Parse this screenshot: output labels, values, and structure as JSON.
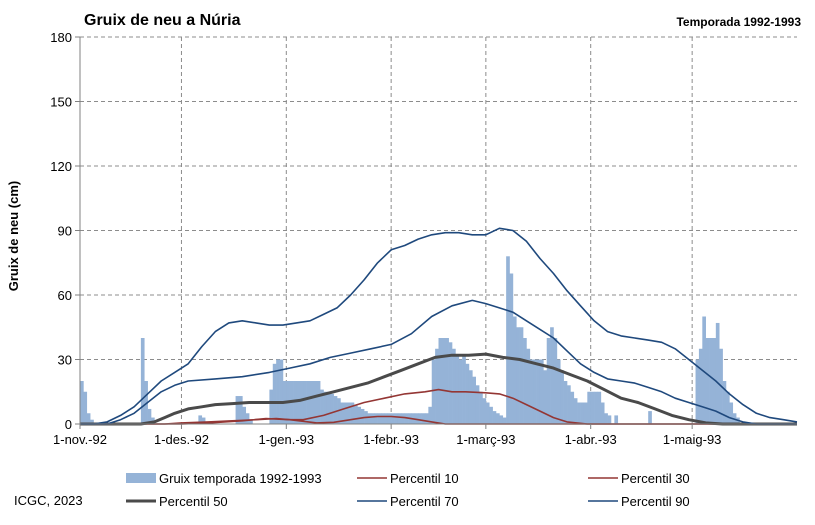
{
  "chart_data": {
    "type": "bar",
    "title": "Gruix de neu a Núria",
    "subtitle": "Temporada 1992-1993",
    "ylabel": "Gruix de neu (cm)",
    "xlabel": "",
    "ylim": [
      0,
      180
    ],
    "yticks": [
      0,
      30,
      60,
      90,
      120,
      150,
      180
    ],
    "x_start": "1992-11-01",
    "x_end": "1993-05-31",
    "xticks": [
      {
        "date": "1992-11-01",
        "label": "1-nov.-92"
      },
      {
        "date": "1992-12-01",
        "label": "1-des.-92"
      },
      {
        "date": "1993-01-01",
        "label": "1-gen.-93"
      },
      {
        "date": "1993-02-01",
        "label": "1-febr.-93"
      },
      {
        "date": "1993-03-01",
        "label": "1-març-93"
      },
      {
        "date": "1993-04-01",
        "label": "1-abr.-93"
      },
      {
        "date": "1993-05-01",
        "label": "1-maig-93"
      }
    ],
    "grid": true,
    "legend_position": "bottom",
    "bars": {
      "name": "Gruix temporada 1992-1993",
      "color": "#95B3D7",
      "values": [
        20,
        15,
        5,
        2,
        0,
        0,
        0,
        0,
        0,
        0,
        0,
        0,
        0,
        0,
        0,
        0,
        0,
        0,
        40,
        20,
        7,
        3,
        0,
        0,
        0,
        0,
        0,
        0,
        0,
        0,
        0,
        0,
        0,
        0,
        0,
        4,
        3,
        0,
        0,
        0,
        0,
        0,
        0,
        0,
        0,
        0,
        13,
        13,
        8,
        5,
        2,
        0,
        0,
        0,
        0,
        0,
        16,
        28,
        30,
        30,
        20,
        20,
        20,
        20,
        20,
        20,
        20,
        20,
        20,
        20,
        20,
        16,
        15,
        15,
        14,
        13,
        12,
        10,
        10,
        10,
        10,
        9,
        8,
        7,
        6,
        5,
        5,
        5,
        5,
        5,
        5,
        5,
        5,
        5,
        5,
        5,
        5,
        5,
        5,
        5,
        5,
        5,
        5,
        8,
        30,
        35,
        40,
        40,
        40,
        38,
        35,
        32,
        30,
        32,
        28,
        25,
        22,
        18,
        15,
        12,
        10,
        8,
        6,
        5,
        4,
        3,
        78,
        70,
        50,
        45,
        45,
        40,
        35,
        30,
        30,
        30,
        30,
        25,
        40,
        45,
        40,
        30,
        25,
        20,
        18,
        15,
        12,
        10,
        10,
        10,
        15,
        15,
        15,
        15,
        10,
        5,
        4,
        0,
        4,
        0,
        0,
        0,
        0,
        0,
        0,
        0,
        0,
        0,
        6,
        0,
        0,
        0,
        0,
        0,
        0,
        0,
        0,
        0,
        0,
        0,
        0,
        0,
        30,
        35,
        50,
        40,
        40,
        40,
        47,
        35,
        20,
        15,
        10,
        5,
        3,
        0,
        0,
        0,
        0,
        0,
        0,
        0,
        0,
        0,
        0,
        0,
        0,
        0,
        0,
        0,
        0
      ]
    },
    "series": [
      {
        "name": "Percentil 10",
        "color": "#943634",
        "width": 1.6,
        "points": [
          [
            0,
            0
          ],
          [
            30,
            0
          ],
          [
            38,
            0.5
          ],
          [
            48,
            1.5
          ],
          [
            55,
            2.5
          ],
          [
            62,
            2
          ],
          [
            70,
            0.5
          ],
          [
            75,
            0.8
          ],
          [
            80,
            2
          ],
          [
            84,
            3
          ],
          [
            88,
            3.5
          ],
          [
            92,
            3.5
          ],
          [
            96,
            3
          ],
          [
            100,
            2
          ],
          [
            104,
            1
          ],
          [
            108,
            0
          ],
          [
            212,
            0
          ]
        ]
      },
      {
        "name": "Percentil 30",
        "color": "#943634",
        "width": 1.6,
        "points": [
          [
            0,
            0
          ],
          [
            20,
            0
          ],
          [
            25,
            0
          ],
          [
            30,
            0.5
          ],
          [
            38,
            1
          ],
          [
            45,
            1.5
          ],
          [
            52,
            2
          ],
          [
            58,
            2.5
          ],
          [
            62,
            2
          ],
          [
            66,
            2
          ],
          [
            72,
            4
          ],
          [
            78,
            7
          ],
          [
            84,
            10
          ],
          [
            90,
            12
          ],
          [
            96,
            14
          ],
          [
            102,
            15
          ],
          [
            106,
            16
          ],
          [
            110,
            15
          ],
          [
            114,
            15
          ],
          [
            120,
            14.5
          ],
          [
            124,
            14
          ],
          [
            128,
            12
          ],
          [
            132,
            9
          ],
          [
            136,
            6
          ],
          [
            140,
            3
          ],
          [
            144,
            1
          ],
          [
            150,
            0
          ],
          [
            212,
            0
          ]
        ]
      },
      {
        "name": "Percentil 50",
        "color": "#4A4A4A",
        "width": 3,
        "points": [
          [
            0,
            0
          ],
          [
            15,
            0
          ],
          [
            18,
            0
          ],
          [
            22,
            1
          ],
          [
            25,
            3
          ],
          [
            28,
            5
          ],
          [
            32,
            7
          ],
          [
            36,
            8
          ],
          [
            40,
            9
          ],
          [
            45,
            9.5
          ],
          [
            50,
            10
          ],
          [
            55,
            10
          ],
          [
            60,
            10
          ],
          [
            65,
            11
          ],
          [
            70,
            13
          ],
          [
            75,
            15
          ],
          [
            80,
            17
          ],
          [
            85,
            19
          ],
          [
            90,
            22
          ],
          [
            95,
            25
          ],
          [
            100,
            28
          ],
          [
            105,
            31
          ],
          [
            110,
            32
          ],
          [
            115,
            32
          ],
          [
            120,
            32.5
          ],
          [
            125,
            31
          ],
          [
            130,
            30
          ],
          [
            135,
            28
          ],
          [
            140,
            26
          ],
          [
            145,
            23
          ],
          [
            150,
            20
          ],
          [
            155,
            16
          ],
          [
            160,
            12
          ],
          [
            165,
            10
          ],
          [
            170,
            7
          ],
          [
            175,
            4
          ],
          [
            180,
            2
          ],
          [
            185,
            0.5
          ],
          [
            190,
            0
          ],
          [
            212,
            0
          ]
        ]
      },
      {
        "name": "Percentil 70",
        "color": "#1F497D",
        "width": 1.6,
        "points": [
          [
            0,
            0
          ],
          [
            8,
            0
          ],
          [
            12,
            2
          ],
          [
            16,
            5
          ],
          [
            20,
            10
          ],
          [
            24,
            15
          ],
          [
            28,
            18
          ],
          [
            32,
            20
          ],
          [
            40,
            21
          ],
          [
            48,
            22
          ],
          [
            56,
            24
          ],
          [
            62,
            26
          ],
          [
            68,
            28
          ],
          [
            74,
            31
          ],
          [
            80,
            33
          ],
          [
            86,
            35
          ],
          [
            92,
            37
          ],
          [
            98,
            42
          ],
          [
            104,
            50
          ],
          [
            110,
            55
          ],
          [
            116,
            57.5
          ],
          [
            120,
            56
          ],
          [
            124,
            54
          ],
          [
            128,
            52
          ],
          [
            132,
            48
          ],
          [
            136,
            44
          ],
          [
            140,
            40
          ],
          [
            144,
            34
          ],
          [
            148,
            28
          ],
          [
            152,
            24
          ],
          [
            156,
            21
          ],
          [
            160,
            20
          ],
          [
            164,
            19
          ],
          [
            168,
            17
          ],
          [
            172,
            15
          ],
          [
            176,
            12
          ],
          [
            180,
            10
          ],
          [
            184,
            8
          ],
          [
            188,
            6
          ],
          [
            192,
            3
          ],
          [
            196,
            1
          ],
          [
            200,
            0
          ],
          [
            212,
            0
          ]
        ]
      },
      {
        "name": "Percentil 90",
        "color": "#1F497D",
        "width": 1.6,
        "points": [
          [
            0,
            0
          ],
          [
            4,
            0
          ],
          [
            8,
            1
          ],
          [
            12,
            4
          ],
          [
            16,
            8
          ],
          [
            20,
            14
          ],
          [
            24,
            20
          ],
          [
            28,
            24
          ],
          [
            32,
            28
          ],
          [
            36,
            36
          ],
          [
            40,
            43
          ],
          [
            44,
            47
          ],
          [
            48,
            48
          ],
          [
            52,
            47
          ],
          [
            56,
            46
          ],
          [
            60,
            46
          ],
          [
            64,
            47
          ],
          [
            68,
            48
          ],
          [
            72,
            51
          ],
          [
            76,
            54
          ],
          [
            80,
            60
          ],
          [
            84,
            67
          ],
          [
            88,
            75
          ],
          [
            92,
            81
          ],
          [
            96,
            83
          ],
          [
            100,
            86
          ],
          [
            104,
            88
          ],
          [
            108,
            89
          ],
          [
            112,
            89
          ],
          [
            116,
            88
          ],
          [
            120,
            88
          ],
          [
            124,
            91
          ],
          [
            128,
            90
          ],
          [
            132,
            85
          ],
          [
            136,
            77
          ],
          [
            140,
            70
          ],
          [
            144,
            62
          ],
          [
            148,
            55
          ],
          [
            152,
            48
          ],
          [
            156,
            43
          ],
          [
            160,
            41
          ],
          [
            164,
            40
          ],
          [
            168,
            39
          ],
          [
            172,
            38
          ],
          [
            176,
            35
          ],
          [
            180,
            30
          ],
          [
            184,
            25
          ],
          [
            188,
            20
          ],
          [
            192,
            14
          ],
          [
            196,
            9
          ],
          [
            200,
            5
          ],
          [
            204,
            3
          ],
          [
            208,
            2
          ],
          [
            212,
            1
          ]
        ]
      }
    ]
  },
  "credit": "ICGC, 2023"
}
